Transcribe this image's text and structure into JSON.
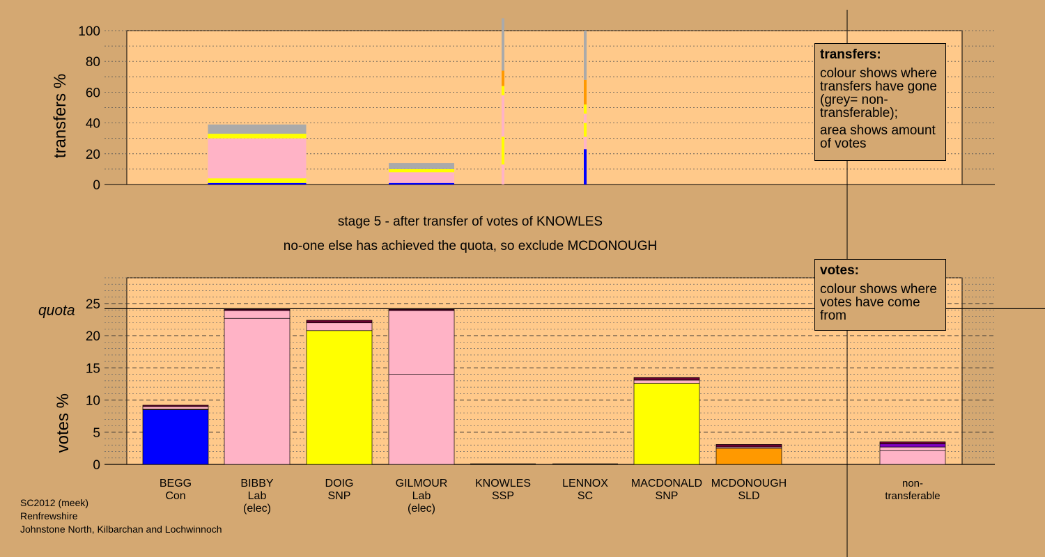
{
  "caption": {
    "stage_line": "stage 5 - after transfer of votes of KNOWLES",
    "action_line": "no-one else has achieved the quota, so exclude MCDONOUGH"
  },
  "legend_transfers": {
    "title": "transfers:",
    "line1": "colour shows where transfers have gone (grey= non-transferable);",
    "line2": "area shows amount of votes"
  },
  "legend_votes": {
    "title": "votes:",
    "line1": "colour shows where votes have come from"
  },
  "footer": {
    "line1": "SC2012 (meek)",
    "line2": "Renfrewshire",
    "line3": "Johnstone North, Kilbarchan and Lochwinnoch"
  },
  "colors": {
    "background": "#d4a872",
    "plot_bg": "#ffc98a",
    "Con": "#0000ff",
    "Lab": "#ffb3c6",
    "SNP": "#ffff00",
    "SLD": "#ff9900",
    "SSP": "#cc0000",
    "SC": "#800080",
    "nontransferable": "#aaaaaa",
    "purple": "#8000c0",
    "darkred": "#6a0030"
  },
  "chart_data": [
    {
      "type": "bar",
      "title": "",
      "ylabel": "transfers %",
      "ylim": [
        0,
        100
      ],
      "yticks": [
        0,
        20,
        40,
        60,
        80,
        100
      ],
      "legend_position": "right",
      "grid": true,
      "categories": [
        "BEGG",
        "BIBBY",
        "DOIG",
        "GILMOUR",
        "KNOWLES",
        "LENNOX",
        "MACDONALD",
        "MCDONOUGH",
        "non-transferable"
      ],
      "widths_relative": [
        1,
        1.5,
        0,
        1,
        0.03,
        0.03,
        0,
        0,
        0
      ],
      "segments": [
        [],
        [
          {
            "color": "Con",
            "v": 1
          },
          {
            "color": "SNP",
            "v": 3
          },
          {
            "color": "Lab",
            "v": 26
          },
          {
            "color": "SNP",
            "v": 3
          },
          {
            "color": "nontransferable",
            "v": 6
          }
        ],
        [],
        [
          {
            "color": "Con",
            "v": 1
          },
          {
            "color": "Lab",
            "v": 7
          },
          {
            "color": "SNP",
            "v": 2
          },
          {
            "color": "nontransferable",
            "v": 4
          }
        ],
        [
          {
            "color": "Lab",
            "v": 13
          },
          {
            "color": "SNP",
            "v": 18
          },
          {
            "color": "Lab",
            "v": 27
          },
          {
            "color": "SNP",
            "v": 6
          },
          {
            "color": "SLD",
            "v": 10
          },
          {
            "color": "nontransferable",
            "v": 34
          }
        ],
        [
          {
            "color": "Con",
            "v": 23
          },
          {
            "color": "Lab",
            "v": 8
          },
          {
            "color": "SNP",
            "v": 9
          },
          {
            "color": "Lab",
            "v": 6
          },
          {
            "color": "SNP",
            "v": 6
          },
          {
            "color": "SLD",
            "v": 16
          },
          {
            "color": "nontransferable",
            "v": 32
          }
        ],
        [],
        [],
        []
      ]
    },
    {
      "type": "bar",
      "title": "",
      "ylabel": "votes %",
      "ylim": [
        0,
        29
      ],
      "yticks": [
        0,
        5,
        10,
        15,
        20,
        25
      ],
      "quota": 24.2,
      "quota_label": "quota",
      "legend_position": "right",
      "grid": true,
      "categories": [
        "BEGG",
        "BIBBY",
        "DOIG",
        "GILMOUR",
        "KNOWLES",
        "LENNOX",
        "MACDONALD",
        "MCDONOUGH",
        "non-transferable"
      ],
      "x_labels": [
        [
          "BEGG",
          "Con"
        ],
        [
          "BIBBY",
          "Lab",
          "(elec)"
        ],
        [
          "DOIG",
          "SNP"
        ],
        [
          "GILMOUR",
          "Lab",
          "(elec)"
        ],
        [
          "KNOWLES",
          "SSP"
        ],
        [
          "LENNOX",
          "SC"
        ],
        [
          "MACDONALD",
          "SNP"
        ],
        [
          "MCDONOUGH",
          "SLD"
        ],
        [
          "non-",
          "transferable"
        ]
      ],
      "stacks": [
        [
          {
            "color": "Con",
            "v": 8.5
          },
          {
            "color": "SNP",
            "v": 0.1
          },
          {
            "color": "Lab",
            "v": 0.4
          },
          {
            "color": "darkred",
            "v": 0.2
          }
        ],
        [
          {
            "color": "Lab",
            "v": 22.7
          },
          {
            "color": "Lab",
            "v": 1.2
          },
          {
            "color": "darkred",
            "v": 0.2
          }
        ],
        [
          {
            "color": "SNP",
            "v": 20.8
          },
          {
            "color": "Lab",
            "v": 1.2
          },
          {
            "color": "darkred",
            "v": 0.4
          }
        ],
        [
          {
            "color": "Lab",
            "v": 14.0
          },
          {
            "color": "Lab",
            "v": 9.9
          },
          {
            "color": "darkred",
            "v": 0.2
          }
        ],
        [],
        [],
        [
          {
            "color": "SNP",
            "v": 12.6
          },
          {
            "color": "Lab",
            "v": 0.5
          },
          {
            "color": "darkred",
            "v": 0.4
          }
        ],
        [
          {
            "color": "SLD",
            "v": 2.5
          },
          {
            "color": "Lab",
            "v": 0.2
          },
          {
            "color": "darkred",
            "v": 0.4
          }
        ],
        [
          {
            "color": "Lab",
            "v": 2.1
          },
          {
            "color": "Lab",
            "v": 0.6
          },
          {
            "color": "purple",
            "v": 0.5
          },
          {
            "color": "darkred",
            "v": 0.3
          }
        ]
      ]
    }
  ]
}
